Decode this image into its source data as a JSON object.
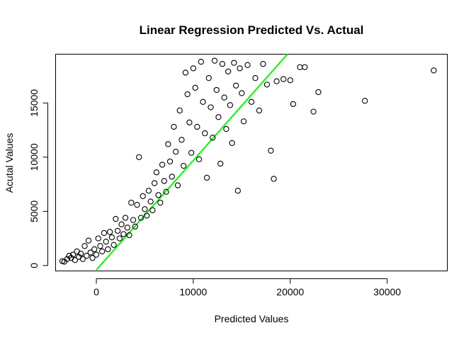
{
  "chart_data": {
    "type": "scatter",
    "title": "Linear Regression Predicted Vs. Actual",
    "xlabel": "Predicted Values",
    "ylabel": "Acutal Values",
    "xlim": [
      -4200,
      36200
    ],
    "ylim": [
      -500,
      19500
    ],
    "x_ticks": [
      0,
      10000,
      20000,
      30000
    ],
    "y_ticks": [
      0,
      5000,
      10000,
      15000
    ],
    "x_tick_labels": [
      "0",
      "10000",
      "20000",
      "30000"
    ],
    "y_tick_labels": [
      "0",
      "5000",
      "10000",
      "15000"
    ],
    "grid": false,
    "marker": "open-circle",
    "point_color": "#000000",
    "fit_line": {
      "color": "#00ff00",
      "points": [
        [
          0,
          -400
        ],
        [
          19700,
          19500
        ]
      ]
    },
    "series": [
      {
        "points": [
          [
            -3500,
            400
          ],
          [
            -3300,
            350
          ],
          [
            -3000,
            600
          ],
          [
            -2800,
            900
          ],
          [
            -2600,
            700
          ],
          [
            -2400,
            1000
          ],
          [
            -2200,
            500
          ],
          [
            -2000,
            1300
          ],
          [
            -1800,
            800
          ],
          [
            -1600,
            1100
          ],
          [
            -1400,
            600
          ],
          [
            -1200,
            1800
          ],
          [
            -1000,
            900
          ],
          [
            -800,
            2300
          ],
          [
            -600,
            1200
          ],
          [
            -400,
            700
          ],
          [
            -200,
            1500
          ],
          [
            0,
            1000
          ],
          [
            200,
            2500
          ],
          [
            400,
            1800
          ],
          [
            600,
            1300
          ],
          [
            800,
            3000
          ],
          [
            1000,
            2200
          ],
          [
            1200,
            1500
          ],
          [
            1400,
            3100
          ],
          [
            1600,
            2600
          ],
          [
            1800,
            1900
          ],
          [
            2000,
            4300
          ],
          [
            2200,
            3200
          ],
          [
            2400,
            2500
          ],
          [
            2600,
            3800
          ],
          [
            2800,
            2900
          ],
          [
            3000,
            4400
          ],
          [
            3200,
            3500
          ],
          [
            3400,
            2800
          ],
          [
            3600,
            5800
          ],
          [
            3800,
            4200
          ],
          [
            4000,
            3600
          ],
          [
            4200,
            5600
          ],
          [
            4400,
            10000
          ],
          [
            4600,
            4400
          ],
          [
            4800,
            6400
          ],
          [
            5000,
            5200
          ],
          [
            5200,
            4600
          ],
          [
            5400,
            6900
          ],
          [
            5600,
            5900
          ],
          [
            5800,
            5100
          ],
          [
            6000,
            7600
          ],
          [
            6200,
            8600
          ],
          [
            6400,
            6500
          ],
          [
            6600,
            5800
          ],
          [
            6800,
            9300
          ],
          [
            7000,
            7800
          ],
          [
            7200,
            6800
          ],
          [
            7400,
            11200
          ],
          [
            7600,
            9600
          ],
          [
            7800,
            8200
          ],
          [
            8000,
            12800
          ],
          [
            8200,
            10500
          ],
          [
            8400,
            7400
          ],
          [
            8600,
            14300
          ],
          [
            8800,
            11600
          ],
          [
            9000,
            9200
          ],
          [
            9200,
            17800
          ],
          [
            9400,
            15800
          ],
          [
            9600,
            13200
          ],
          [
            9800,
            10400
          ],
          [
            10000,
            18200
          ],
          [
            10200,
            16400
          ],
          [
            10400,
            12800
          ],
          [
            10600,
            9800
          ],
          [
            10800,
            18800
          ],
          [
            11000,
            15100
          ],
          [
            11200,
            12200
          ],
          [
            11400,
            8100
          ],
          [
            11600,
            17300
          ],
          [
            11800,
            14600
          ],
          [
            12000,
            11800
          ],
          [
            12200,
            18900
          ],
          [
            12400,
            16200
          ],
          [
            12600,
            13700
          ],
          [
            12800,
            9400
          ],
          [
            13000,
            18600
          ],
          [
            13200,
            15500
          ],
          [
            13400,
            12600
          ],
          [
            13600,
            17900
          ],
          [
            13800,
            14800
          ],
          [
            14000,
            11300
          ],
          [
            14200,
            18700
          ],
          [
            14400,
            16600
          ],
          [
            14600,
            6900
          ],
          [
            14800,
            18200
          ],
          [
            15000,
            15900
          ],
          [
            15200,
            13300
          ],
          [
            15600,
            18500
          ],
          [
            16000,
            15100
          ],
          [
            16400,
            17300
          ],
          [
            16800,
            14300
          ],
          [
            17200,
            18600
          ],
          [
            17600,
            16700
          ],
          [
            18000,
            10600
          ],
          [
            18300,
            8000
          ],
          [
            18600,
            17000
          ],
          [
            19300,
            17200
          ],
          [
            20000,
            17100
          ],
          [
            20300,
            14900
          ],
          [
            21000,
            18300
          ],
          [
            21500,
            18300
          ],
          [
            22400,
            14200
          ],
          [
            22900,
            16000
          ],
          [
            27700,
            15200
          ],
          [
            34800,
            18000
          ]
        ]
      }
    ]
  }
}
